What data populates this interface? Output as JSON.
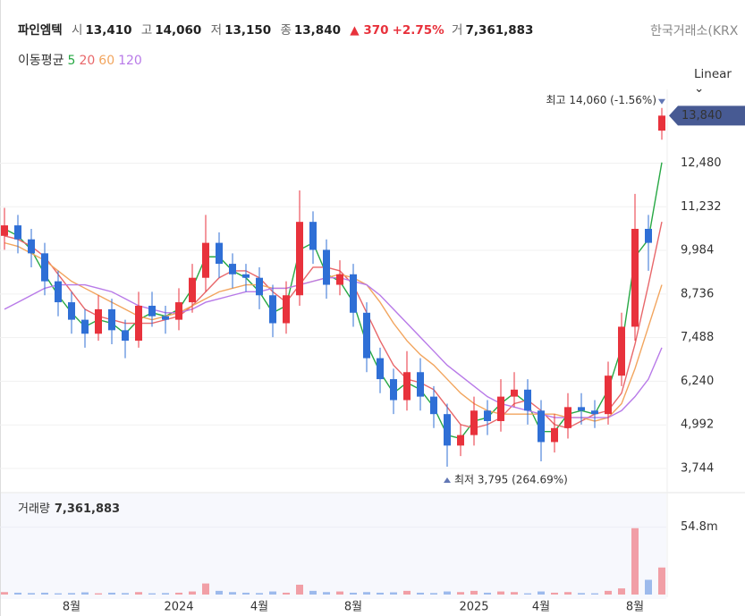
{
  "chart_data": {
    "type": "candlestick",
    "header": {
      "name": "파인엠텍",
      "open_label": "시",
      "open": "13,410",
      "high_label": "고",
      "high": "14,060",
      "low_label": "저",
      "low": "13,150",
      "close_label": "종",
      "close": "13,840",
      "change": "▲ 370",
      "change_pct": "+2.75%",
      "volume_label": "거",
      "volume": "7,361,883",
      "exchange": "한국거래소(KRX"
    },
    "scale": "Linear",
    "categories": [
      null,
      null,
      null,
      null,
      null,
      "8월",
      null,
      null,
      null,
      null,
      null,
      null,
      null,
      "2024",
      null,
      null,
      null,
      null,
      null,
      "4월",
      null,
      null,
      null,
      null,
      null,
      null,
      "8월",
      null,
      null,
      null,
      null,
      null,
      null,
      null,
      null,
      "2025",
      null,
      null,
      null,
      null,
      "4월",
      null,
      null,
      null,
      null,
      null,
      null,
      "8월",
      null,
      null
    ],
    "open": [
      10400,
      10700,
      10300,
      9900,
      9100,
      8500,
      8000,
      7600,
      8300,
      7700,
      7400,
      8400,
      8100,
      8000,
      8500,
      9200,
      10200,
      9600,
      9300,
      9200,
      8700,
      7900,
      8700,
      10800,
      10000,
      9000,
      9300,
      8200,
      6900,
      6300,
      5700,
      6500,
      5800,
      5300,
      4400,
      4700,
      5400,
      5100,
      5800,
      6000,
      5400,
      4500,
      4900,
      5500,
      5400,
      5300,
      6400,
      7800,
      10600,
      13410
    ],
    "high": [
      11200,
      11000,
      10600,
      10200,
      9400,
      8800,
      8300,
      8700,
      8600,
      8000,
      8800,
      8800,
      8400,
      8900,
      9600,
      11000,
      10500,
      9900,
      9600,
      9500,
      9000,
      9100,
      11700,
      11100,
      10300,
      9700,
      9600,
      8500,
      7200,
      6600,
      7100,
      6900,
      6100,
      5600,
      5000,
      5800,
      5700,
      6300,
      6500,
      6300,
      5700,
      5300,
      5900,
      5900,
      5700,
      6800,
      8200,
      11600,
      11000,
      14060
    ],
    "low": [
      10000,
      9900,
      9500,
      8700,
      8100,
      7600,
      7200,
      7400,
      7300,
      6900,
      7200,
      7800,
      7600,
      7700,
      8200,
      8800,
      9200,
      8900,
      8800,
      8300,
      7500,
      7600,
      8400,
      9600,
      8600,
      8700,
      7800,
      6500,
      5900,
      5300,
      5400,
      5400,
      4900,
      3795,
      4100,
      4400,
      4700,
      4800,
      5500,
      5000,
      3950,
      4200,
      4600,
      5000,
      4900,
      5000,
      6100,
      7400,
      9400,
      13150
    ],
    "close": [
      10700,
      10300,
      9900,
      9100,
      8500,
      8000,
      7600,
      8300,
      7700,
      7400,
      8400,
      8100,
      8000,
      8500,
      9200,
      10200,
      9600,
      9300,
      9200,
      8700,
      7900,
      8700,
      10800,
      10000,
      9000,
      9300,
      8200,
      6900,
      6300,
      5700,
      6500,
      5800,
      5300,
      4400,
      4700,
      5400,
      5100,
      5800,
      6000,
      5400,
      4500,
      4900,
      5500,
      5400,
      5300,
      6400,
      7800,
      10600,
      10200,
      13840
    ],
    "up_color": "#e8323c",
    "down_color": "#2f6fd6",
    "moving_averages": {
      "label": "이동평균",
      "series": [
        {
          "name": "5",
          "color": "#27a844",
          "values": [
            10600,
            10400,
            10000,
            9300,
            8700,
            8200,
            7800,
            8000,
            7900,
            7600,
            8000,
            8200,
            8100,
            8300,
            8900,
            9800,
            9800,
            9400,
            9200,
            8800,
            8200,
            8400,
            10000,
            10200,
            9300,
            9100,
            8500,
            7300,
            6500,
            5900,
            6200,
            6000,
            5500,
            4700,
            4600,
            5100,
            5200,
            5600,
            5900,
            5600,
            4800,
            4800,
            5300,
            5400,
            5300,
            6000,
            7200,
            9800,
            10300,
            12500
          ]
        },
        {
          "name": "20",
          "color": "#e8676a",
          "values": [
            10400,
            10300,
            10100,
            9800,
            9300,
            8800,
            8300,
            8100,
            8000,
            7900,
            7900,
            7900,
            8000,
            8100,
            8400,
            8800,
            9200,
            9400,
            9400,
            9200,
            8800,
            8500,
            9000,
            9500,
            9500,
            9400,
            9000,
            8200,
            7400,
            6700,
            6300,
            6200,
            6000,
            5500,
            5000,
            4900,
            5000,
            5200,
            5600,
            5700,
            5400,
            5000,
            4900,
            5100,
            5300,
            5400,
            5900,
            7300,
            9000,
            10800
          ]
        },
        {
          "name": "60",
          "color": "#f2a55e",
          "values": [
            10200,
            10100,
            9900,
            9700,
            9400,
            9100,
            8900,
            8700,
            8500,
            8300,
            8100,
            8000,
            8100,
            8200,
            8400,
            8600,
            8800,
            8900,
            9000,
            9000,
            8900,
            8900,
            9000,
            9100,
            9200,
            9300,
            9200,
            9000,
            8500,
            7900,
            7400,
            7000,
            6700,
            6300,
            5900,
            5600,
            5400,
            5300,
            5300,
            5300,
            5300,
            5300,
            5200,
            5200,
            5100,
            5200,
            5600,
            6600,
            7800,
            9000
          ]
        },
        {
          "name": "120",
          "color": "#b87ae8",
          "values": [
            8300,
            8500,
            8700,
            8900,
            9000,
            9000,
            9000,
            8900,
            8800,
            8600,
            8400,
            8300,
            8200,
            8200,
            8300,
            8500,
            8600,
            8700,
            8800,
            8800,
            8900,
            8900,
            9000,
            9100,
            9200,
            9200,
            9100,
            9000,
            8700,
            8300,
            7900,
            7500,
            7100,
            6700,
            6400,
            6100,
            5800,
            5600,
            5500,
            5400,
            5300,
            5200,
            5200,
            5200,
            5200,
            5200,
            5400,
            5800,
            6300,
            7200
          ]
        }
      ]
    },
    "ylim": [
      3130,
      14590
    ],
    "yticks": [
      {
        "value": 3744,
        "label": "3,744"
      },
      {
        "value": 4992,
        "label": "4,992"
      },
      {
        "value": 6240,
        "label": "6,240"
      },
      {
        "value": 7488,
        "label": "7,488"
      },
      {
        "value": 8736,
        "label": "8,736"
      },
      {
        "value": 9984,
        "label": "9,984"
      },
      {
        "value": 11232,
        "label": "11,232"
      },
      {
        "value": 12480,
        "label": "12,480"
      }
    ],
    "grid": true,
    "price_tag": {
      "value": 13840,
      "label": "13,840"
    },
    "high_annotation": "최고 14,060 (-1.56%)",
    "low_annotation": "최저 3,795 (264.69%)",
    "volume_title": "거래량",
    "volume_current": "7,361,883",
    "volume": [
      2000000,
      1500000,
      1200000,
      1500000,
      1000000,
      1200000,
      1800000,
      1000000,
      1500000,
      1200000,
      2000000,
      1000000,
      1200000,
      1500000,
      2500000,
      9000000,
      3000000,
      2000000,
      1500000,
      1200000,
      2500000,
      1500000,
      8000000,
      3000000,
      2000000,
      2500000,
      1500000,
      2000000,
      1500000,
      1800000,
      3000000,
      1500000,
      1200000,
      2500000,
      2000000,
      3000000,
      1500000,
      2500000,
      2000000,
      1000000,
      2500000,
      1500000,
      2000000,
      1200000,
      1000000,
      3000000,
      5000000,
      54000000,
      12000000,
      22000000
    ],
    "vlim": [
      0,
      80000000
    ],
    "vticks": [
      {
        "value": 54800000,
        "label": "54.8m"
      }
    ]
  }
}
